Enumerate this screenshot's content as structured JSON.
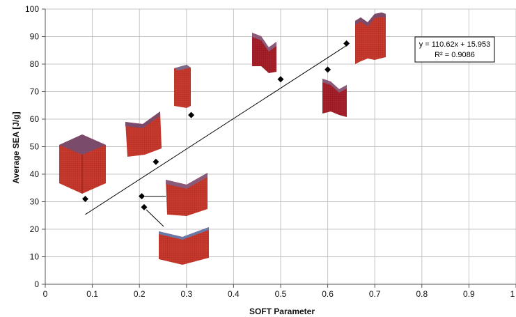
{
  "chart_data": {
    "type": "scatter",
    "title": "",
    "xlabel": "SOFT Parameter",
    "ylabel": "Average SEA [J/g]",
    "xlim": [
      0,
      1
    ],
    "ylim": [
      0,
      100
    ],
    "x_ticks": [
      "0",
      "0.1",
      "0.2",
      "0.3",
      "0.4",
      "0.5",
      "0.6",
      "0.7",
      "0.8",
      "0.9",
      "1"
    ],
    "y_ticks": [
      "0",
      "10",
      "20",
      "30",
      "40",
      "50",
      "60",
      "70",
      "80",
      "90",
      "100"
    ],
    "grid": true,
    "legend": "none",
    "marker": "diamond",
    "marker_color": "#000000",
    "points": [
      {
        "x": 0.085,
        "y": 31
      },
      {
        "x": 0.205,
        "y": 32
      },
      {
        "x": 0.21,
        "y": 28
      },
      {
        "x": 0.235,
        "y": 44.5
      },
      {
        "x": 0.31,
        "y": 61.5
      },
      {
        "x": 0.5,
        "y": 74.5
      },
      {
        "x": 0.6,
        "y": 78
      },
      {
        "x": 0.64,
        "y": 87.5
      }
    ],
    "trendline": {
      "x": [
        0.085,
        0.64
      ],
      "slope": 110.62,
      "intercept": 15.953,
      "equation": "y = 110.62x + 15.953",
      "r2_label": "R² = 0.9086"
    },
    "annotations": {
      "kind": "crushed-tube-thumbnails",
      "count": 8,
      "surface_color": "#c8342c",
      "top_color": "#7a4a6a"
    }
  }
}
